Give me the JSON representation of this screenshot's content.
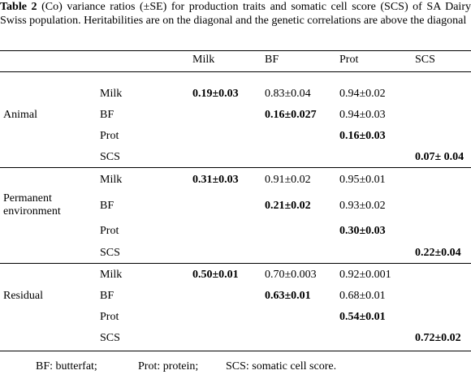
{
  "caption": {
    "lead": "Table 2",
    "text": " (Co) variance ratios (±SE) for production traits and somatic cell score (SCS) of SA Dairy Swiss population. Heritabilities are on the diagonal and the genetic correlations are above the diagonal"
  },
  "columns": [
    "Milk",
    "BF",
    "Prot",
    "SCS"
  ],
  "groups": [
    {
      "label": "Animal",
      "rows": [
        {
          "trait": "Milk",
          "values": [
            "0.19±0.03",
            "0.83±0.04",
            "0.94±0.02",
            ""
          ]
        },
        {
          "trait": "BF",
          "values": [
            "",
            "0.16±0.027",
            "0.94±0.03",
            ""
          ]
        },
        {
          "trait": "Prot",
          "values": [
            "",
            "",
            "0.16±0.03",
            ""
          ]
        },
        {
          "trait": "SCS",
          "values": [
            "",
            "",
            "",
            "0.07± 0.04"
          ]
        }
      ]
    },
    {
      "label": "Permanent environment",
      "label_lines": [
        "Permanent",
        "environment"
      ],
      "rows": [
        {
          "trait": "Milk",
          "values": [
            "0.31±0.03",
            "0.91±0.02",
            "0.95±0.01",
            ""
          ]
        },
        {
          "trait": "BF",
          "values": [
            "",
            "0.21±0.02",
            "0.93±0.02",
            ""
          ]
        },
        {
          "trait": "Prot",
          "values": [
            "",
            "",
            "0.30±0.03",
            ""
          ]
        },
        {
          "trait": "SCS",
          "values": [
            "",
            "",
            "",
            "0.22±0.04"
          ]
        }
      ]
    },
    {
      "label": "Residual",
      "rows": [
        {
          "trait": "Milk",
          "values": [
            "0.50±0.01",
            "0.70±0.003",
            "0.92±0.001",
            ""
          ]
        },
        {
          "trait": "BF",
          "values": [
            "",
            "0.63±0.01",
            "0.68±0.01",
            ""
          ]
        },
        {
          "trait": "Prot",
          "values": [
            "",
            "",
            "0.54±0.01",
            ""
          ]
        },
        {
          "trait": "SCS",
          "values": [
            "",
            "",
            "",
            "0.72±0.02"
          ]
        }
      ]
    }
  ],
  "footnotes": [
    "BF: butterfat;",
    "Prot: protein;",
    "SCS: somatic cell score."
  ]
}
